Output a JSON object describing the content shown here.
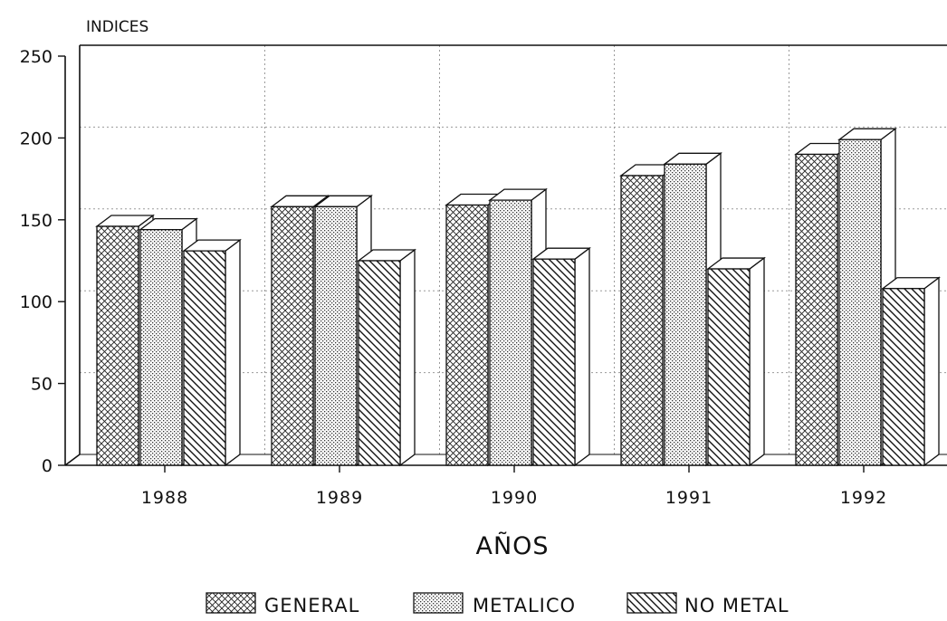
{
  "chart_data": {
    "type": "bar",
    "ylabel": "INDICES",
    "xlabel": "AÑOS",
    "categories": [
      "1988",
      "1989",
      "1990",
      "1991",
      "1992"
    ],
    "ylim": [
      0,
      250
    ],
    "yticks": [
      "0",
      "50",
      "100",
      "150",
      "200",
      "250"
    ],
    "grid": true,
    "three_d": true,
    "legend_position": "bottom",
    "series": [
      {
        "name": "GENERAL",
        "pattern": "crosshatch",
        "values": [
          146,
          158,
          159,
          177,
          190
        ]
      },
      {
        "name": "METALICO",
        "pattern": "dots",
        "values": [
          144,
          158,
          162,
          184,
          199
        ]
      },
      {
        "name": "NO METAL",
        "pattern": "diagonal-lines",
        "values": [
          131,
          125,
          126,
          120,
          108
        ]
      }
    ]
  }
}
